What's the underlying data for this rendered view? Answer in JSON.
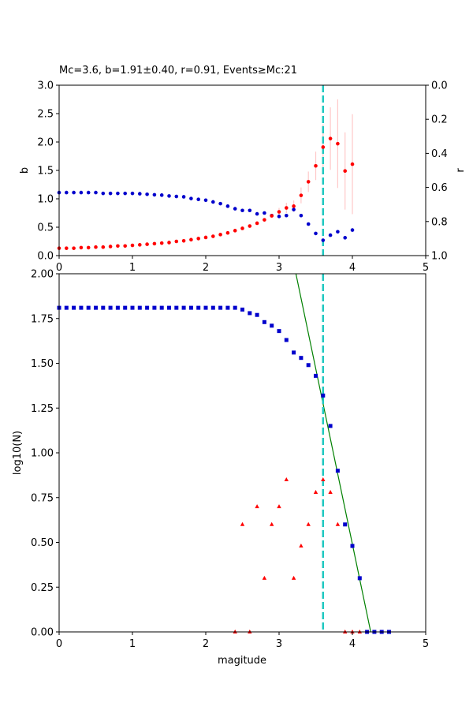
{
  "chart_data": [
    {
      "type": "scatter",
      "title": "Mc=3.6, b=1.91±0.40, r=0.91, Events$\\geq$Mc:21",
      "title_display": "Mc=3.6, b=1.91±0.40, r=0.91, Events≥Mc:21",
      "xlabel": "",
      "ylabel": "b",
      "ylabel_right": "r",
      "xlim": [
        0,
        5
      ],
      "ylim": [
        0,
        3
      ],
      "ylim_right": [
        1,
        0
      ],
      "xticks": [
        "0",
        "1",
        "2",
        "3",
        "4",
        "5"
      ],
      "yticks": [
        "0.0",
        "0.5",
        "1.0",
        "1.5",
        "2.0",
        "2.5",
        "3.0"
      ],
      "yticks_right": [
        "0.0",
        "0.2",
        "0.4",
        "0.6",
        "0.8",
        "1.0"
      ],
      "mc_line_x": 3.6,
      "grid": false,
      "series": [
        {
          "axis": "left",
          "color": "#ff0000",
          "error_color": "#ffc8c8",
          "points": [
            [
              0.0,
              0.13
            ],
            [
              0.1,
              0.13
            ],
            [
              0.2,
              0.13
            ],
            [
              0.3,
              0.14
            ],
            [
              0.4,
              0.14
            ],
            [
              0.5,
              0.15
            ],
            [
              0.6,
              0.15
            ],
            [
              0.7,
              0.16
            ],
            [
              0.8,
              0.17
            ],
            [
              0.9,
              0.17
            ],
            [
              1.0,
              0.18
            ],
            [
              1.1,
              0.19
            ],
            [
              1.2,
              0.2
            ],
            [
              1.3,
              0.21
            ],
            [
              1.4,
              0.22
            ],
            [
              1.5,
              0.23
            ],
            [
              1.6,
              0.25
            ],
            [
              1.7,
              0.26
            ],
            [
              1.8,
              0.28
            ],
            [
              1.9,
              0.3
            ],
            [
              2.0,
              0.32
            ],
            [
              2.1,
              0.34
            ],
            [
              2.2,
              0.37
            ],
            [
              2.3,
              0.4
            ],
            [
              2.4,
              0.44
            ],
            [
              2.5,
              0.48
            ],
            [
              2.6,
              0.52
            ],
            [
              2.7,
              0.57
            ],
            [
              2.8,
              0.63
            ],
            [
              2.9,
              0.7
            ],
            [
              3.0,
              0.77
            ],
            [
              3.1,
              0.84
            ],
            [
              3.2,
              0.87
            ],
            [
              3.3,
              1.06
            ],
            [
              3.4,
              1.3
            ],
            [
              3.5,
              1.58
            ],
            [
              3.6,
              1.91
            ],
            [
              3.7,
              2.06
            ],
            [
              3.8,
              1.97
            ],
            [
              3.9,
              1.49
            ],
            [
              4.0,
              1.61
            ]
          ],
          "errors": [
            [
              3.0,
              0.07
            ],
            [
              3.1,
              0.09
            ],
            [
              3.2,
              0.1
            ],
            [
              3.3,
              0.14
            ],
            [
              3.4,
              0.18
            ],
            [
              3.5,
              0.25
            ],
            [
              3.6,
              0.4
            ],
            [
              3.7,
              0.55
            ],
            [
              3.8,
              0.78
            ],
            [
              3.9,
              0.68
            ],
            [
              4.0,
              0.88
            ]
          ]
        },
        {
          "axis": "right",
          "color": "#0000cc",
          "points": [
            [
              0.0,
              0.63
            ],
            [
              0.1,
              0.63
            ],
            [
              0.2,
              0.63
            ],
            [
              0.3,
              0.63
            ],
            [
              0.4,
              0.63
            ],
            [
              0.5,
              0.63
            ],
            [
              0.6,
              0.635
            ],
            [
              0.7,
              0.635
            ],
            [
              0.8,
              0.635
            ],
            [
              0.9,
              0.635
            ],
            [
              1.0,
              0.635
            ],
            [
              1.1,
              0.637
            ],
            [
              1.2,
              0.64
            ],
            [
              1.3,
              0.643
            ],
            [
              1.4,
              0.645
            ],
            [
              1.5,
              0.65
            ],
            [
              1.6,
              0.653
            ],
            [
              1.7,
              0.655
            ],
            [
              1.8,
              0.665
            ],
            [
              1.9,
              0.67
            ],
            [
              2.0,
              0.675
            ],
            [
              2.1,
              0.685
            ],
            [
              2.2,
              0.695
            ],
            [
              2.3,
              0.71
            ],
            [
              2.4,
              0.725
            ],
            [
              2.5,
              0.735
            ],
            [
              2.6,
              0.735
            ],
            [
              2.7,
              0.755
            ],
            [
              2.8,
              0.75
            ],
            [
              2.9,
              0.765
            ],
            [
              3.0,
              0.77
            ],
            [
              3.1,
              0.765
            ],
            [
              3.2,
              0.73
            ],
            [
              3.3,
              0.765
            ],
            [
              3.4,
              0.815
            ],
            [
              3.5,
              0.87
            ],
            [
              3.6,
              0.91
            ],
            [
              3.7,
              0.88
            ],
            [
              3.8,
              0.86
            ],
            [
              3.9,
              0.895
            ],
            [
              4.0,
              0.85
            ]
          ]
        }
      ]
    },
    {
      "type": "scatter",
      "title": "",
      "xlabel": "magitude",
      "ylabel": "log10(N)",
      "xlim": [
        0,
        5
      ],
      "ylim": [
        0,
        2
      ],
      "xticks": [
        "0",
        "1",
        "2",
        "3",
        "4",
        "5"
      ],
      "yticks": [
        "0.00",
        "0.25",
        "0.50",
        "0.75",
        "1.00",
        "1.25",
        "1.50",
        "1.75",
        "2.00"
      ],
      "mc_line_x": 3.6,
      "grid": false,
      "fit_line": {
        "color": "#008000",
        "x": [
          3.23,
          4.25
        ],
        "y": [
          2.0,
          0.0
        ]
      },
      "series": [
        {
          "marker": "square",
          "color": "#0000cc",
          "points": [
            [
              0.0,
              1.81
            ],
            [
              0.1,
              1.81
            ],
            [
              0.2,
              1.81
            ],
            [
              0.3,
              1.81
            ],
            [
              0.4,
              1.81
            ],
            [
              0.5,
              1.81
            ],
            [
              0.6,
              1.81
            ],
            [
              0.7,
              1.81
            ],
            [
              0.8,
              1.81
            ],
            [
              0.9,
              1.81
            ],
            [
              1.0,
              1.81
            ],
            [
              1.1,
              1.81
            ],
            [
              1.2,
              1.81
            ],
            [
              1.3,
              1.81
            ],
            [
              1.4,
              1.81
            ],
            [
              1.5,
              1.81
            ],
            [
              1.6,
              1.81
            ],
            [
              1.7,
              1.81
            ],
            [
              1.8,
              1.81
            ],
            [
              1.9,
              1.81
            ],
            [
              2.0,
              1.81
            ],
            [
              2.1,
              1.81
            ],
            [
              2.2,
              1.81
            ],
            [
              2.3,
              1.81
            ],
            [
              2.4,
              1.81
            ],
            [
              2.5,
              1.8
            ],
            [
              2.6,
              1.78
            ],
            [
              2.7,
              1.77
            ],
            [
              2.8,
              1.73
            ],
            [
              2.9,
              1.71
            ],
            [
              3.0,
              1.68
            ],
            [
              3.1,
              1.63
            ],
            [
              3.2,
              1.56
            ],
            [
              3.3,
              1.53
            ],
            [
              3.4,
              1.49
            ],
            [
              3.5,
              1.43
            ],
            [
              3.6,
              1.32
            ],
            [
              3.7,
              1.15
            ],
            [
              3.8,
              0.9
            ],
            [
              3.9,
              0.6
            ],
            [
              4.0,
              0.48
            ],
            [
              4.1,
              0.3
            ],
            [
              4.2,
              0.0
            ],
            [
              4.3,
              0.0
            ],
            [
              4.4,
              0.0
            ],
            [
              4.5,
              0.0
            ]
          ]
        },
        {
          "marker": "triangle",
          "color": "#ff0000",
          "points": [
            [
              2.4,
              0.0
            ],
            [
              2.5,
              0.6
            ],
            [
              2.6,
              0.0
            ],
            [
              2.7,
              0.7
            ],
            [
              2.8,
              0.3
            ],
            [
              2.9,
              0.6
            ],
            [
              3.0,
              0.7
            ],
            [
              3.1,
              0.85
            ],
            [
              3.2,
              0.3
            ],
            [
              3.3,
              0.48
            ],
            [
              3.4,
              0.6
            ],
            [
              3.5,
              0.78
            ],
            [
              3.6,
              0.85
            ],
            [
              3.7,
              0.78
            ],
            [
              3.8,
              0.6
            ],
            [
              3.9,
              0.0
            ],
            [
              4.0,
              0.0
            ],
            [
              4.1,
              0.0
            ]
          ]
        }
      ]
    }
  ]
}
